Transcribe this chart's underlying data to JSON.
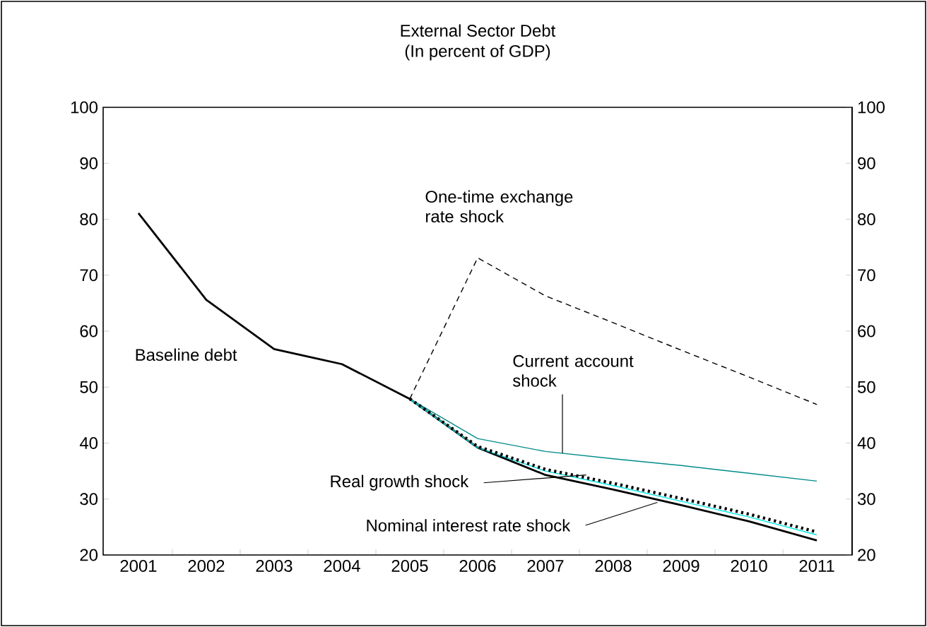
{
  "chart_data": {
    "type": "line",
    "title": "External Sector Debt",
    "subtitle": "(In percent of GDP)",
    "x": [
      2001,
      2002,
      2003,
      2004,
      2005,
      2006,
      2007,
      2008,
      2009,
      2010,
      2011
    ],
    "series": [
      {
        "color": "#000000",
        "line_style": "solid",
        "values": [
          81.1,
          65.6,
          56.8,
          54.1,
          47.9,
          39.2,
          34.3,
          31.7,
          28.9,
          26.0,
          22.6
        ]
      },
      {
        "color": "#000000",
        "line_style": "dashed",
        "values": [
          null,
          null,
          null,
          null,
          47.9,
          73.1,
          66.3,
          61.5,
          56.6,
          51.8,
          46.9
        ]
      },
      {
        "color": "#008b8b",
        "line_style": "solid",
        "values": [
          null,
          null,
          null,
          null,
          47.9,
          40.8,
          38.5,
          37.2,
          36.0,
          34.6,
          33.2
        ]
      },
      {
        "color": "#00e5e5",
        "line_style": "solid",
        "values": [
          null,
          null,
          null,
          null,
          47.9,
          39.2,
          35.0,
          32.4,
          29.6,
          26.8,
          23.6
        ]
      },
      {
        "color": "#000000",
        "line_style": "dotted",
        "values": [
          null,
          null,
          null,
          null,
          47.9,
          39.4,
          35.3,
          32.8,
          30.1,
          27.3,
          24.1
        ]
      }
    ],
    "annotations": [
      "Baseline debt",
      "One-time exchange rate shock",
      {
        "text": "Current account shock",
        "x": 2007.25,
        "y": 38.2
      },
      {
        "text": "Real growth shock",
        "x": 2007.6,
        "y": 34.3
      },
      {
        "text": "Nominal interest rate shock",
        "x": 2008.65,
        "y": 29.4
      }
    ],
    "xlim": [
      2000.48,
      2011.52
    ],
    "xticks": [
      2001,
      2002,
      2003,
      2004,
      2005,
      2006,
      2007,
      2008,
      2009,
      2010,
      2011,
      {
        "value": 2001.5,
        "label": null
      },
      {
        "value": 2002.5,
        "label": null
      },
      {
        "value": 2003.5,
        "label": null
      },
      {
        "value": 2004.5,
        "label": null
      },
      {
        "value": 2005.5,
        "label": null
      },
      {
        "value": 2006.5,
        "label": null
      },
      {
        "value": 2007.5,
        "label": null
      },
      {
        "value": 2008.5,
        "label": null
      },
      {
        "value": 2009.5,
        "label": null
      },
      {
        "value": 2010.5,
        "label": null
      }
    ],
    "ylim": [
      20,
      100
    ],
    "yticks": [
      20,
      30,
      40,
      50,
      60,
      70,
      80,
      90,
      100
    ],
    "y2lim": [
      20,
      100
    ],
    "y2ticks": [
      20,
      30,
      40,
      50,
      60,
      70,
      80,
      90,
      100
    ]
  }
}
